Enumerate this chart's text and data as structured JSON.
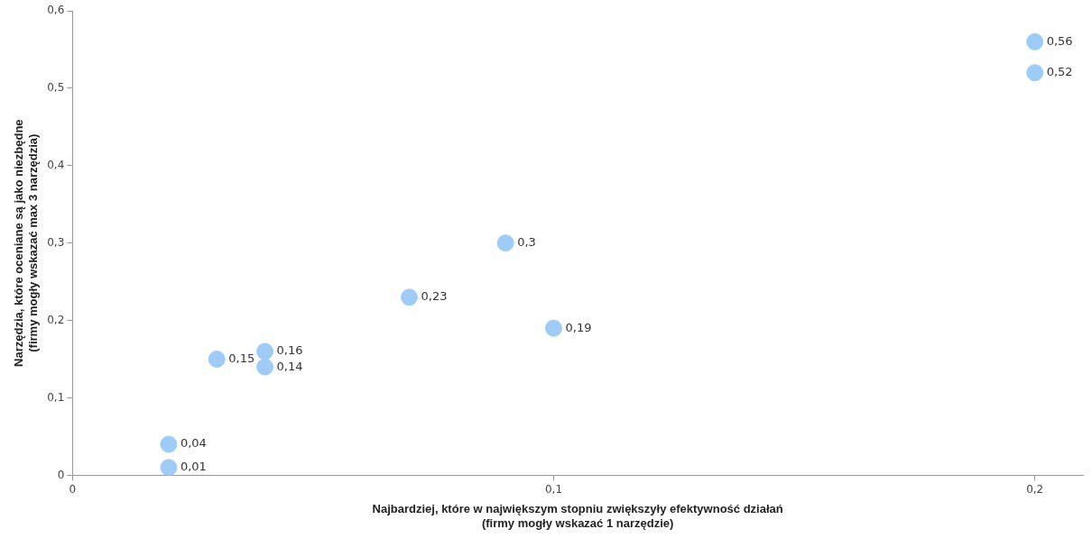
{
  "chart_data": {
    "type": "scatter",
    "xlabel": "Najbardziej, które w największym stopniu zwiększyły efektywność działań\n(firmy mogły wskazać 1 narzędzie)",
    "ylabel": "Narzędzia, które oceniane są jako niezbędne\n(firmy mogły wskazać max 3 narzędzia)",
    "series": [
      {
        "color": "#9fcbf7",
        "x": [
          0.02,
          0.02,
          0.03,
          0.04,
          0.04,
          0.07,
          0.09,
          0.1,
          0.2,
          0.2
        ],
        "values": [
          0.01,
          0.04,
          0.15,
          0.16,
          0.14,
          0.23,
          0.3,
          0.19,
          0.56,
          0.52
        ],
        "value_labels": [
          "0,01",
          "0,04",
          "0,15",
          "0,16",
          "0,14",
          "0,23",
          "0,3",
          "0,19",
          "0,56",
          "0,52"
        ]
      }
    ],
    "xlim": [
      0,
      0.21
    ],
    "xticks": [
      {
        "value": 0,
        "label": "0"
      },
      {
        "value": 0.1,
        "label": "0,1"
      },
      {
        "value": 0.2,
        "label": "0,2"
      }
    ],
    "ylim": [
      0,
      0.6
    ],
    "yticks": [
      {
        "value": 0,
        "label": "0"
      },
      {
        "value": 0.1,
        "label": "0,1"
      },
      {
        "value": 0.2,
        "label": "0,2"
      },
      {
        "value": 0.3,
        "label": "0,3"
      },
      {
        "value": 0.4,
        "label": "0,4"
      },
      {
        "value": 0.5,
        "label": "0,5"
      },
      {
        "value": 0.6,
        "label": "0,6"
      }
    ],
    "grid": false,
    "legend": false,
    "marker": "circle"
  }
}
